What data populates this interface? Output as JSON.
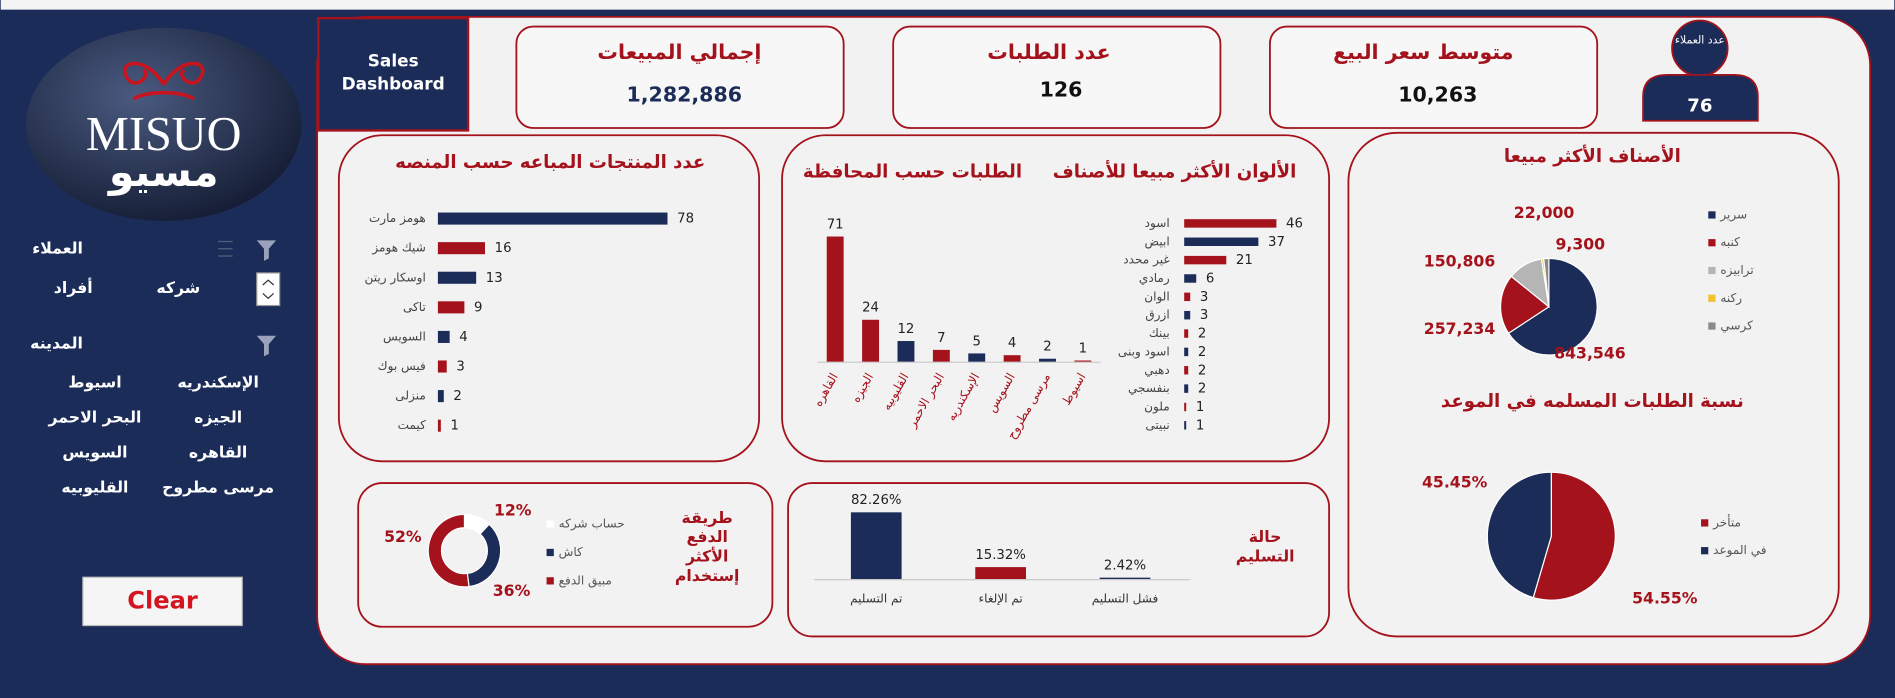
{
  "brand": {
    "latin": "MISUO",
    "arabic": "مسيو"
  },
  "dashboard_title": "Sales Dashboard",
  "kpis": [
    {
      "label": "إجمالي المبيعات",
      "value": "1,282,886"
    },
    {
      "label": "عدد الطلبات",
      "value": "126"
    },
    {
      "label": "متوسط سعر البيع",
      "value": "10,263"
    }
  ],
  "customers": {
    "label": "عدد العملاء",
    "value": "76"
  },
  "slicers": [
    {
      "title": "العملاء",
      "items": [
        "شركه",
        "أفراد"
      ]
    },
    {
      "title": "المدينه",
      "items": [
        "الإسكندريه",
        "اسيوط",
        "الجيزه",
        "البحر الاحمر",
        "القاهره",
        "السويس",
        "مرسى مطروح",
        "القليوبيه"
      ]
    }
  ],
  "clear_button": "Clear",
  "chart_data": [
    {
      "type": "bar",
      "horizontal": true,
      "title": "عدد المنتجات المباعه حسب المنصه",
      "categories": [
        "هومز مارت",
        "شيك هومز",
        "اوسكار ريتن",
        "تاكى",
        "السويس",
        "فيس بوك",
        "منزلى",
        "كيمت"
      ],
      "values": [
        78,
        16,
        13,
        9,
        4,
        3,
        2,
        1
      ],
      "colors": [
        "#1b2c59",
        "#a4121c",
        "#1b2c59",
        "#a4121c",
        "#1b2c59",
        "#a4121c",
        "#1b2c59",
        "#a4121c"
      ],
      "xlim": [
        0,
        80
      ]
    },
    {
      "type": "bar",
      "title": "الطلبات حسب المحافظة",
      "categories": [
        "القاهره",
        "الجيزه",
        "القليوبيه",
        "البحر الاحمر",
        "الإسكندريه",
        "السويس",
        "مرسى مطروح",
        "اسيوط"
      ],
      "values": [
        71,
        24,
        12,
        7,
        5,
        4,
        2,
        1
      ],
      "colors": [
        "#a4121c",
        "#a4121c",
        "#1b2c59",
        "#a4121c",
        "#1b2c59",
        "#a4121c",
        "#1b2c59",
        "#a4121c"
      ],
      "ylim": [
        0,
        75
      ]
    },
    {
      "type": "bar",
      "horizontal": true,
      "title": "الألوان الأكثر مبيعا للأصناف",
      "categories": [
        "اسود",
        "ابيض",
        "غير محدد",
        "رمادي",
        "الوان",
        "ازرق",
        "بينك",
        "اسود وبنى",
        "دهبي",
        "بنفسجي",
        "ملون",
        "نبيتى"
      ],
      "values": [
        46,
        37,
        21,
        6,
        3,
        3,
        2,
        2,
        2,
        2,
        1,
        1
      ],
      "colors": [
        "#a4121c",
        "#1b2c59",
        "#a4121c",
        "#1b2c59",
        "#a4121c",
        "#1b2c59",
        "#a4121c",
        "#1b2c59",
        "#a4121c",
        "#1b2c59",
        "#a4121c",
        "#1b2c59"
      ],
      "xlim": [
        0,
        50
      ]
    },
    {
      "type": "pie",
      "title": "الأصناف الأكثر مبيعا",
      "categories": [
        "سرير",
        "كنبه",
        "ترابيزه",
        "ركنه",
        "كرسي"
      ],
      "values": [
        843546,
        257234,
        150806,
        9300,
        22000
      ],
      "value_labels": [
        "843,546",
        "257,234",
        "150,806",
        "9,300",
        "22,000"
      ],
      "colors": [
        "#1b2c59",
        "#a4121c",
        "#b5b5b5",
        "#f2c12e",
        "#8a8a8a"
      ]
    },
    {
      "type": "pie",
      "title": "نسبة الطلبات المسلمه في الموعد",
      "categories": [
        "متأخر",
        "في الموعد"
      ],
      "values": [
        54.55,
        45.45
      ],
      "value_labels": [
        "54.55%",
        "45.45%"
      ],
      "colors": [
        "#a4121c",
        "#1b2c59"
      ]
    },
    {
      "type": "pie",
      "donut": true,
      "title": "طريقة الدفع الأكثر إستخدام",
      "categories": [
        "حساب شركه",
        "كاش",
        "مبيق الدفع"
      ],
      "values": [
        12,
        36,
        52
      ],
      "value_labels": [
        "12%",
        "36%",
        "52%"
      ],
      "colors": [
        "#ffffff",
        "#1b2c59",
        "#a4121c"
      ]
    },
    {
      "type": "bar",
      "title": "حالة التسليم",
      "categories": [
        "تم التسليم",
        "تم الإلغاء",
        "فشل التسليم"
      ],
      "values": [
        82.26,
        15.32,
        2.42
      ],
      "value_labels": [
        "82.26%",
        "15.32%",
        "2.42%"
      ],
      "colors": [
        "#1b2c59",
        "#a4121c",
        "#1b2c59"
      ],
      "ylim": [
        0,
        90
      ]
    }
  ]
}
